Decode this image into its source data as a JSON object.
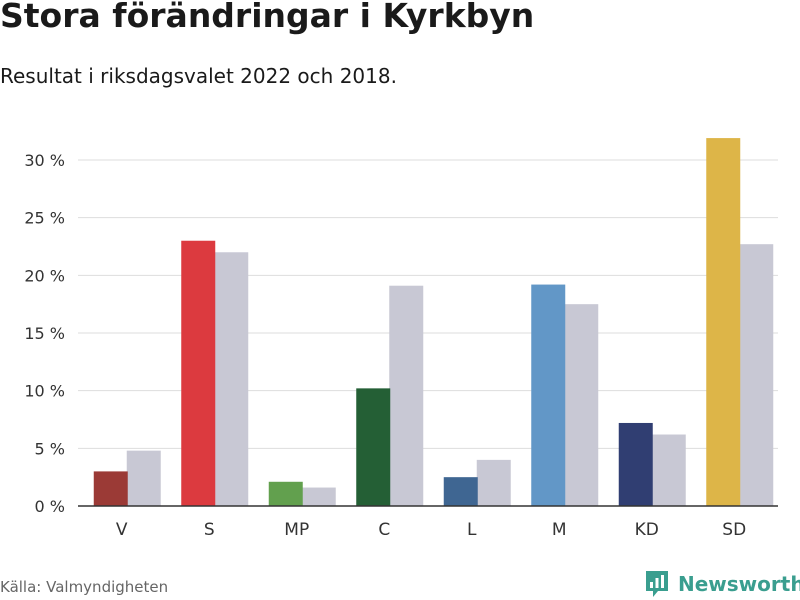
{
  "chart_data": {
    "type": "bar",
    "title": "Stora förändringar i Kyrkbyn",
    "subtitle": "Resultat i riksdagsvalet 2022 och 2018.",
    "categories": [
      "V",
      "S",
      "MP",
      "C",
      "L",
      "M",
      "KD",
      "SD"
    ],
    "series": [
      {
        "values": [
          3.0,
          23.0,
          2.1,
          10.2,
          2.5,
          19.2,
          7.2,
          31.9
        ],
        "colors": [
          "#9b3a36",
          "#dc3a3f",
          "#62a04e",
          "#245f35",
          "#3f6692",
          "#6297c7",
          "#303e72",
          "#ddb548"
        ]
      },
      {
        "values": [
          4.8,
          22.0,
          1.6,
          19.1,
          4.0,
          17.5,
          6.2,
          22.7
        ],
        "color": "#c8c8d4"
      }
    ],
    "ylim": [
      0,
      30
    ],
    "yticks": [
      0,
      5,
      10,
      15,
      20,
      25,
      30
    ],
    "ytick_labels": [
      "0 %",
      "5 %",
      "10 %",
      "15 %",
      "20 %",
      "25 %",
      "30 %"
    ],
    "grid": true
  },
  "footer": {
    "source": "Källa: Valmyndigheten",
    "brand": "Newsworthy",
    "brand_color": "#3a9e8f"
  }
}
